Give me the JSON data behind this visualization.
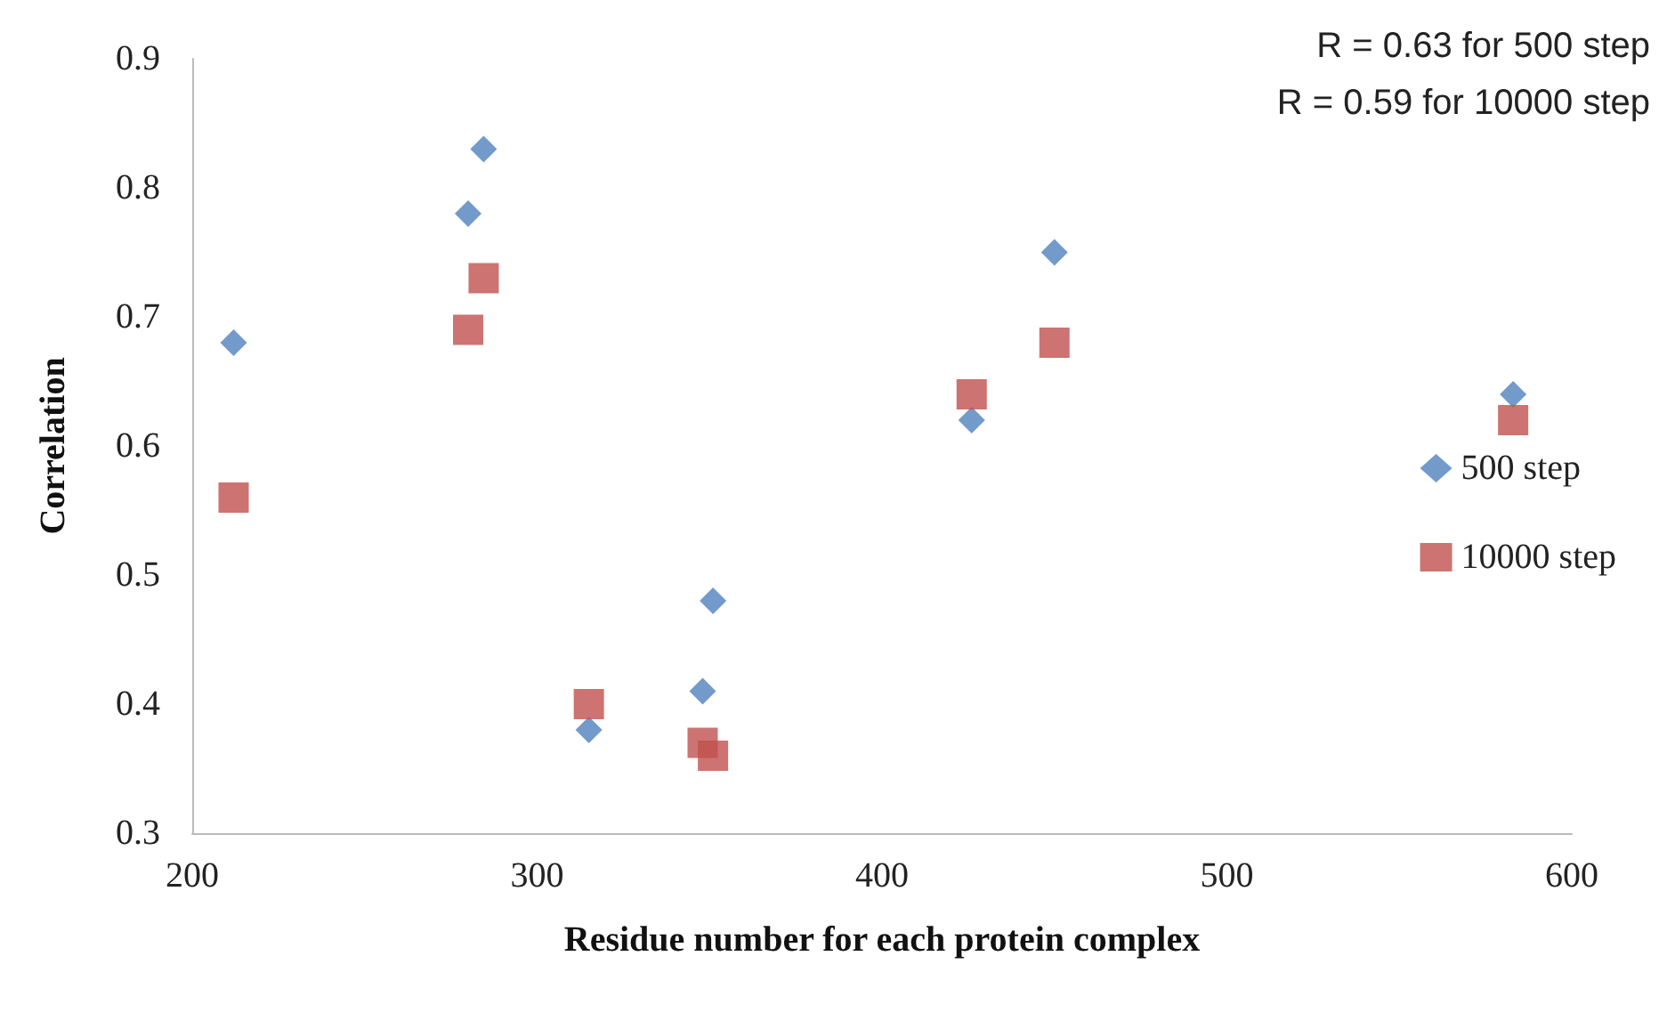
{
  "chart_data": {
    "type": "scatter",
    "xlabel": "Residue number for each protein complex",
    "ylabel": "Correlation",
    "annotations": [
      "R = 0.63 for 500 step",
      "R = 0.59 for 10000 step"
    ],
    "series": [
      {
        "name": "500 step",
        "color": "#4f81bd",
        "marker": "diamond",
        "x": [
          212,
          280,
          284.5,
          315,
          348,
          351,
          426,
          450,
          583
        ],
        "values": [
          0.68,
          0.78,
          0.83,
          0.38,
          0.41,
          0.48,
          0.62,
          0.75,
          0.64
        ]
      },
      {
        "name": "10000 step",
        "color": "#c0504d",
        "marker": "square",
        "x": [
          212,
          280,
          284.5,
          315,
          348,
          351,
          426,
          450,
          583
        ],
        "values": [
          0.56,
          0.69,
          0.73,
          0.4,
          0.37,
          0.36,
          0.64,
          0.68,
          0.62
        ]
      }
    ],
    "xlim": [
      200,
      600
    ],
    "xticks": [
      200,
      300,
      400,
      500,
      600
    ],
    "ylim": [
      0.3,
      0.9
    ],
    "yticks": [
      0.3,
      0.4,
      0.5,
      0.6,
      0.7,
      0.8,
      0.9
    ],
    "grid": false,
    "legend": "right"
  }
}
